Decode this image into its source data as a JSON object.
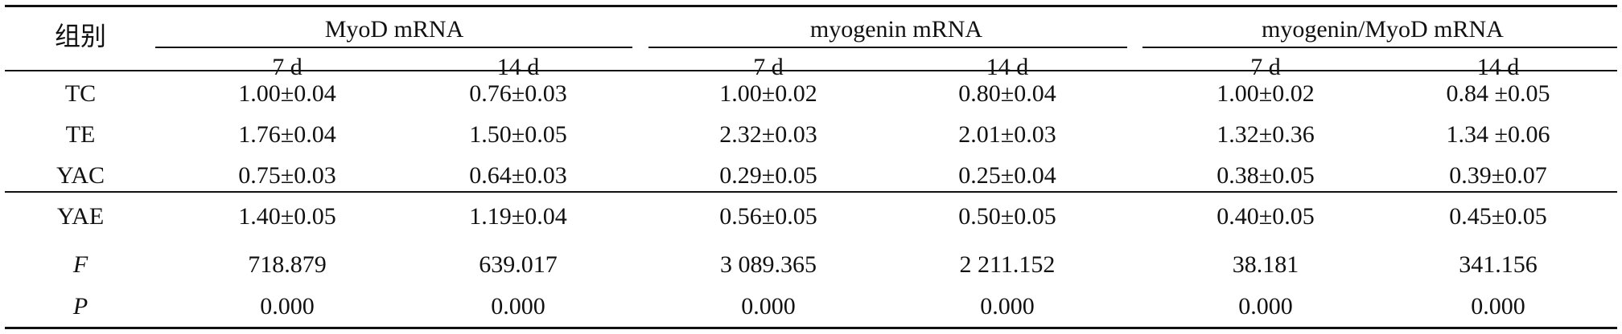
{
  "table": {
    "row_header_label": "组别",
    "column_groups": [
      {
        "label": "MyoD mRNA",
        "subcolumns": [
          "7 d",
          "14 d"
        ]
      },
      {
        "label": "myogenin mRNA",
        "subcolumns": [
          "7 d",
          "14 d"
        ]
      },
      {
        "label": "myogenin/MyoD mRNA",
        "subcolumns": [
          "7 d",
          "14 d"
        ]
      }
    ],
    "rows": [
      {
        "group": "TC",
        "values": [
          "1.00±0.04",
          "0.76±0.03",
          "1.00±0.02",
          "0.80±0.04",
          "1.00±0.02",
          "0.84 ±0.05"
        ]
      },
      {
        "group": "TE",
        "values": [
          "1.76±0.04",
          "1.50±0.05",
          "2.32±0.03",
          "2.01±0.03",
          "1.32±0.36",
          "1.34 ±0.06"
        ]
      },
      {
        "group": "YAC",
        "values": [
          "0.75±0.03",
          "0.64±0.03",
          "0.29±0.05",
          "0.25±0.04",
          "0.38±0.05",
          "0.39±0.07"
        ]
      },
      {
        "group": "YAE",
        "values": [
          "1.40±0.05",
          "1.19±0.04",
          "0.56±0.05",
          "0.50±0.05",
          "0.40±0.05",
          "0.45±0.05"
        ]
      }
    ],
    "stats": [
      {
        "label": "F",
        "values": [
          "718.879",
          "639.017",
          "3 089.365",
          "2 211.152",
          "38.181",
          "341.156"
        ]
      },
      {
        "label": "P",
        "values": [
          "0.000",
          "0.000",
          "0.000",
          "0.000",
          "0.000",
          "0.000"
        ]
      }
    ]
  }
}
